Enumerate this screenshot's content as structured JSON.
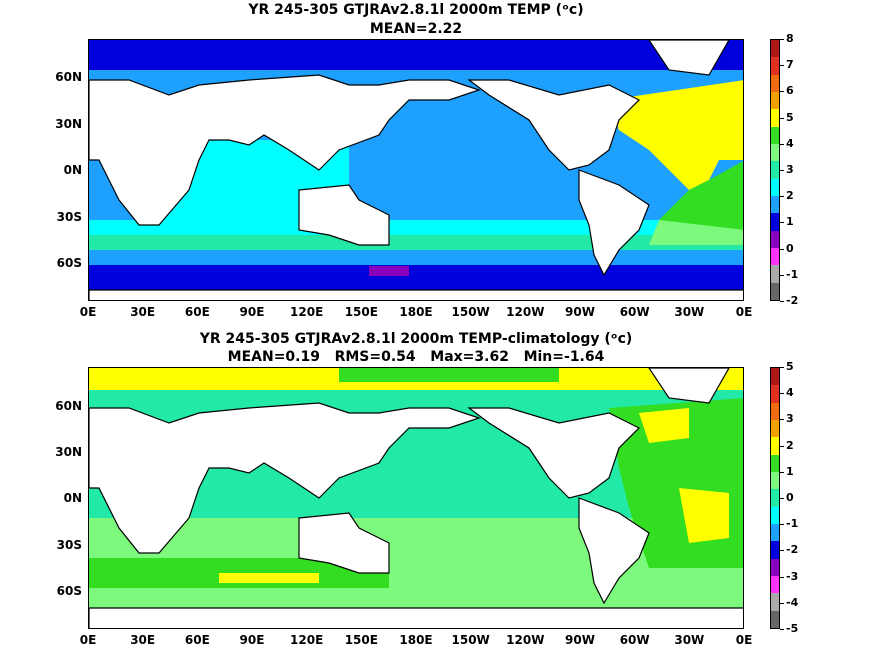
{
  "panels": [
    {
      "title_line1": "YR 245-305 GTJRAv2.8.1l 2000m TEMP (ᵒc)",
      "title_line2": "MEAN=2.22",
      "colorbar": {
        "labels": [
          "8",
          "7",
          "6",
          "5",
          "4",
          "3",
          "2",
          "1",
          "0",
          "-1",
          "-2"
        ],
        "colors": [
          "#b01818",
          "#e03020",
          "#f06a10",
          "#f0a000",
          "#ffff00",
          "#33dd22",
          "#7dfa7d",
          "#22e8a8",
          "#00ffff",
          "#1ea0ff",
          "#0000dd",
          "#8800bb",
          "#ff33ff",
          "#aaaaaa",
          "#666666"
        ]
      }
    },
    {
      "title_line1": "YR 245-305 GTJRAv2.8.1l 2000m TEMP-climatology (ᵒc)",
      "title_line2": "MEAN=0.19   RMS=0.54   Max=3.62   Min=-1.64",
      "colorbar": {
        "labels": [
          "5",
          "4",
          "3",
          "2",
          "1",
          "0",
          "-1",
          "-2",
          "-3",
          "-4",
          "-5"
        ],
        "colors": [
          "#b01818",
          "#e03020",
          "#f06a10",
          "#f0a000",
          "#ffff00",
          "#33dd22",
          "#7dfa7d",
          "#22e8a8",
          "#00ffff",
          "#1ea0ff",
          "#0000dd",
          "#8800bb",
          "#ff33ff",
          "#aaaaaa",
          "#666666"
        ]
      }
    }
  ],
  "lat_labels": [
    "60N",
    "30N",
    "0N",
    "30S",
    "60S"
  ],
  "lon_labels": [
    "0E",
    "30E",
    "60E",
    "90E",
    "120E",
    "150E",
    "180E",
    "150W",
    "120W",
    "90W",
    "60W",
    "30W",
    "0E"
  ],
  "colors": {
    "land": "#ffffff",
    "coast": "#000000"
  }
}
